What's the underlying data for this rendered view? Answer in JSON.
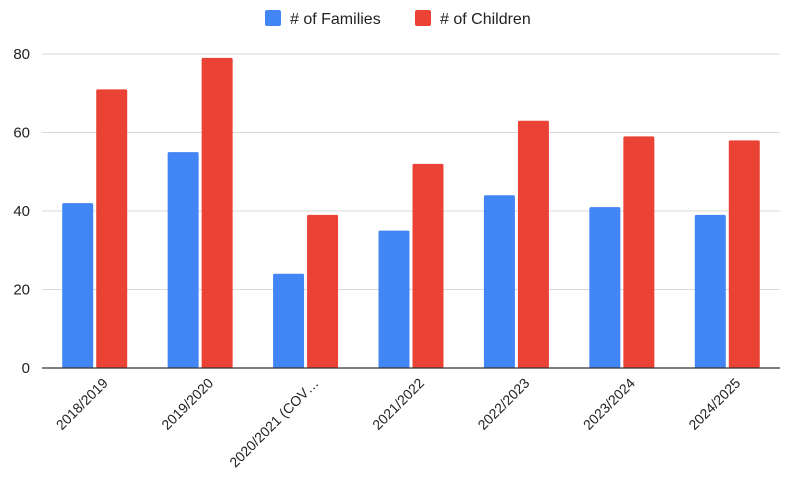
{
  "chart_data": {
    "type": "bar",
    "title": "",
    "xlabel": "",
    "ylabel": "",
    "categories": [
      "2018/2019",
      "2019/2020",
      "2020/2021 (COV…",
      "2021/2022",
      "2022/2023",
      "2023/2024",
      "2024/2025"
    ],
    "series": [
      {
        "name": "# of Families",
        "color": "#4285f4",
        "values": [
          42,
          55,
          24,
          35,
          44,
          41,
          39
        ]
      },
      {
        "name": "# of Children",
        "color": "#ea4335",
        "values": [
          71,
          79,
          39,
          52,
          63,
          59,
          58
        ]
      }
    ],
    "ylim": [
      0,
      80
    ],
    "yticks": [
      0,
      20,
      40,
      60,
      80
    ],
    "grid": true,
    "legend_position": "top-center"
  }
}
